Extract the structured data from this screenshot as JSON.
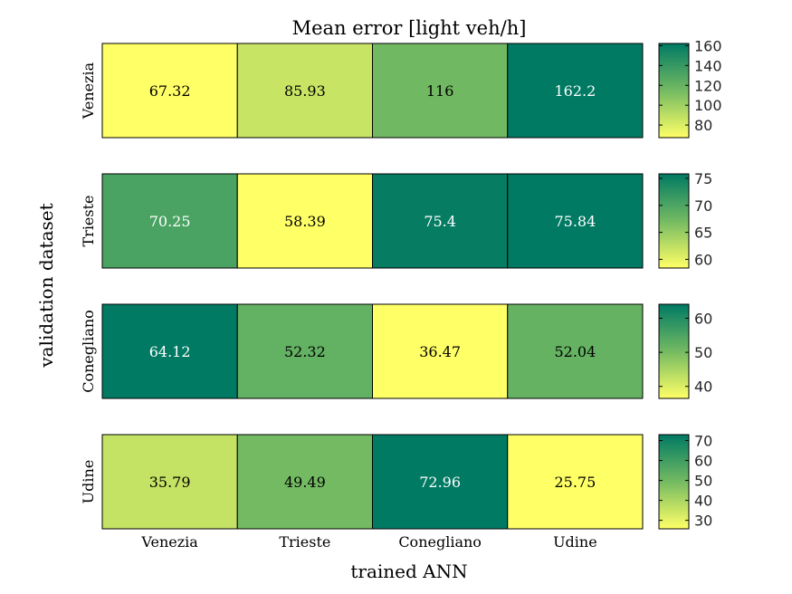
{
  "chart_data": {
    "type": "heatmap",
    "title": "Mean error [light veh/h]",
    "xlabel": "trained ANN",
    "ylabel": "validation dataset",
    "x_categories": [
      "Venezia",
      "Trieste",
      "Conegliano",
      "Udine"
    ],
    "colormap": {
      "low": "#ffff66",
      "high": "#007a63"
    },
    "rows": [
      {
        "label": "Venezia",
        "values": [
          67.32,
          85.93,
          116,
          162.2
        ],
        "value_labels": [
          "67.32",
          "85.93",
          "116",
          "162.2"
        ],
        "colorbar_range": [
          67.32,
          162.2
        ],
        "colorbar_ticks": [
          80,
          100,
          120,
          140,
          160
        ]
      },
      {
        "label": "Trieste",
        "values": [
          70.25,
          58.39,
          75.4,
          75.84
        ],
        "value_labels": [
          "70.25",
          "58.39",
          "75.4",
          "75.84"
        ],
        "colorbar_range": [
          58.39,
          75.84
        ],
        "colorbar_ticks": [
          60,
          65,
          70,
          75
        ]
      },
      {
        "label": "Conegliano",
        "values": [
          64.12,
          52.32,
          36.47,
          52.04
        ],
        "value_labels": [
          "64.12",
          "52.32",
          "36.47",
          "52.04"
        ],
        "colorbar_range": [
          36.47,
          64.12
        ],
        "colorbar_ticks": [
          40,
          50,
          60
        ]
      },
      {
        "label": "Udine",
        "values": [
          35.79,
          49.49,
          72.96,
          25.75
        ],
        "value_labels": [
          "35.79",
          "49.49",
          "72.96",
          "25.75"
        ],
        "colorbar_range": [
          25.75,
          72.96
        ],
        "colorbar_ticks": [
          30,
          40,
          50,
          60,
          70
        ]
      }
    ]
  }
}
